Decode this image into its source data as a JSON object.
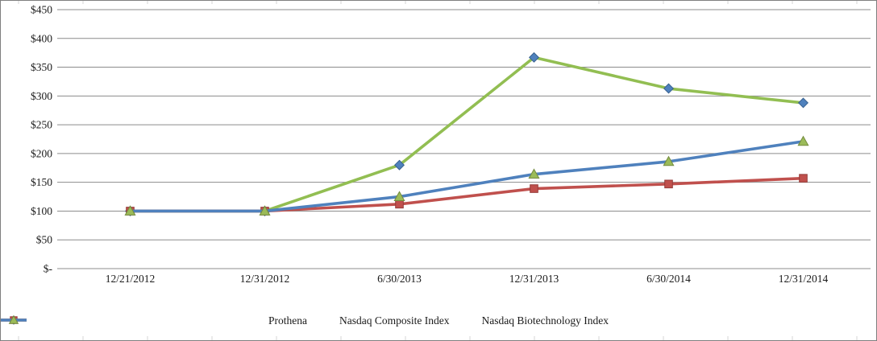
{
  "chart_data": {
    "type": "line",
    "title": "",
    "xlabel": "",
    "ylabel": "",
    "categories": [
      "12/21/2012",
      "12/31/2012",
      "6/30/2013",
      "12/31/2013",
      "6/30/2014",
      "12/31/2014"
    ],
    "series": [
      {
        "name": "Prothena",
        "values": [
          100,
          100,
          180,
          367,
          313,
          288
        ],
        "line_color": "#92BE52",
        "marker": "diamond",
        "marker_color": "#4F81BD",
        "marker_edge": "#38618F"
      },
      {
        "name": "Nasdaq Composite Index",
        "values": [
          100,
          100,
          112,
          139,
          147,
          157
        ],
        "line_color": "#C0504D",
        "marker": "square",
        "marker_color": "#C0504D",
        "marker_edge": "#943B39"
      },
      {
        "name": "Nasdaq Biotechnology Index",
        "values": [
          100,
          100,
          125,
          164,
          186,
          221
        ],
        "line_color": "#4F81BD",
        "marker": "triangle",
        "marker_color": "#9BBB59",
        "marker_edge": "#748B3E"
      }
    ],
    "y_ticks": [
      {
        "label": "$450",
        "value": 450
      },
      {
        "label": "$400",
        "value": 400
      },
      {
        "label": "$350",
        "value": 350
      },
      {
        "label": "$300",
        "value": 300
      },
      {
        "label": "$250",
        "value": 250
      },
      {
        "label": "$200",
        "value": 200
      },
      {
        "label": "$150",
        "value": 150
      },
      {
        "label": "$100",
        "value": 100
      },
      {
        "label": "$50",
        "value": 50
      },
      {
        "label": "$-",
        "value": 0
      }
    ],
    "ylim": [
      0,
      450
    ],
    "grid": true,
    "gridline_color": "#8C8C8C",
    "legend_position": "bottom"
  }
}
